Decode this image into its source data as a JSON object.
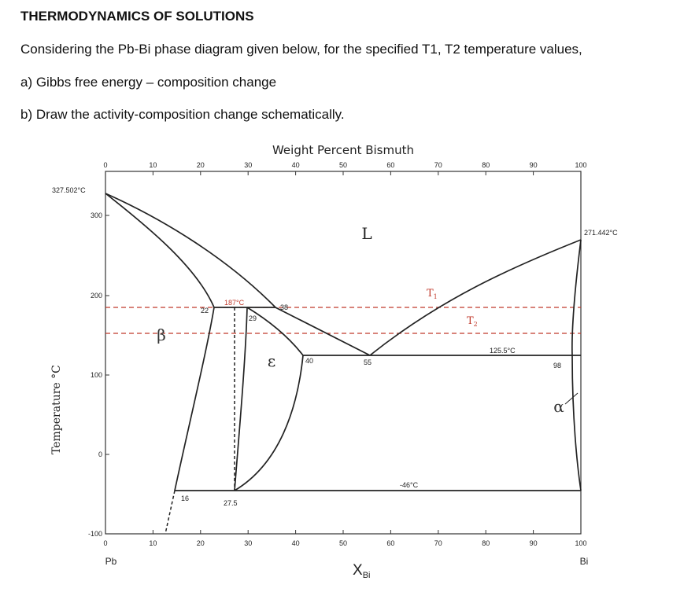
{
  "question": {
    "title": "THERMODYNAMICS OF SOLUTIONS",
    "intro": "Considering the Pb-Bi phase diagram given below, for the specified T1, T2 temperature values,",
    "part_a": "a) Gibbs free energy – composition change",
    "part_b": "b) Draw the activity-composition change schematically."
  },
  "diagram": {
    "top_axis_title": "Weight Percent Bismuth",
    "top_ticks": [
      "0",
      "10",
      "20",
      "30",
      "40",
      "50",
      "60",
      "70",
      "80",
      "90",
      "100"
    ],
    "bottom_ticks": [
      "0",
      "10",
      "20",
      "30",
      "40",
      "50",
      "60",
      "70",
      "80",
      "90",
      "100"
    ],
    "y_ticks": [
      "300",
      "200",
      "100",
      "0",
      "-100"
    ],
    "y_axis_title": "Temperature °C",
    "x_axis_title_main": "X",
    "x_axis_title_sub": "Bi",
    "left_element": "Pb",
    "right_element": "Bi",
    "pb_melting": "327.502°C",
    "bi_melting": "271.442°C",
    "phase_L": "L",
    "phase_beta": "β",
    "phase_epsilon": "ε",
    "phase_alpha": "α",
    "t1": "T",
    "t1_sub": "1",
    "t2": "T",
    "t2_sub": "2",
    "peritectic_temp": "187°C",
    "eutectic_temp": "125.5°C",
    "low_temp": "-46°C",
    "comp_22": "22",
    "comp_29": "29",
    "comp_38": "38",
    "comp_40": "40",
    "comp_55": "55",
    "comp_98": "98",
    "comp_16": "16",
    "comp_275": "27.5",
    "colors": {
      "line": "#222222",
      "dashed_temp": "#c0392b",
      "text": "#222222"
    }
  }
}
